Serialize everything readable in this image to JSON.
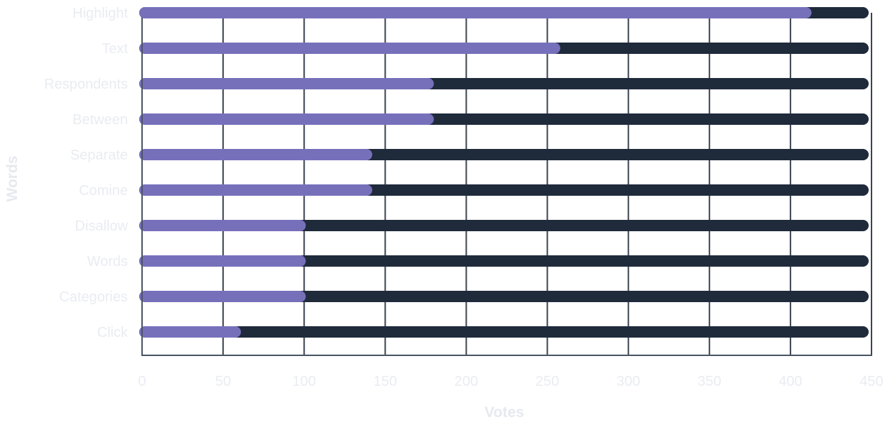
{
  "chart_data": {
    "type": "bar",
    "orientation": "horizontal",
    "categories": [
      "Highlight",
      "Text",
      "Respondents",
      "Between",
      "Separate",
      "Comine",
      "Disallow",
      "Words",
      "Categories",
      "Click"
    ],
    "values": [
      413,
      258,
      180,
      180,
      142,
      142,
      101,
      101,
      101,
      61
    ],
    "track_value": 450,
    "xlabel": "Votes",
    "ylabel": "Words",
    "xlim": [
      0,
      450
    ],
    "xticks": [
      0,
      50,
      100,
      150,
      200,
      250,
      300,
      350,
      400,
      450
    ],
    "grid": true,
    "colors": {
      "bar": "#7670bb",
      "track": "#1f2a3b",
      "grid": "#3a4350",
      "axis": "#4a5462",
      "text": "#e9ecf2"
    }
  }
}
